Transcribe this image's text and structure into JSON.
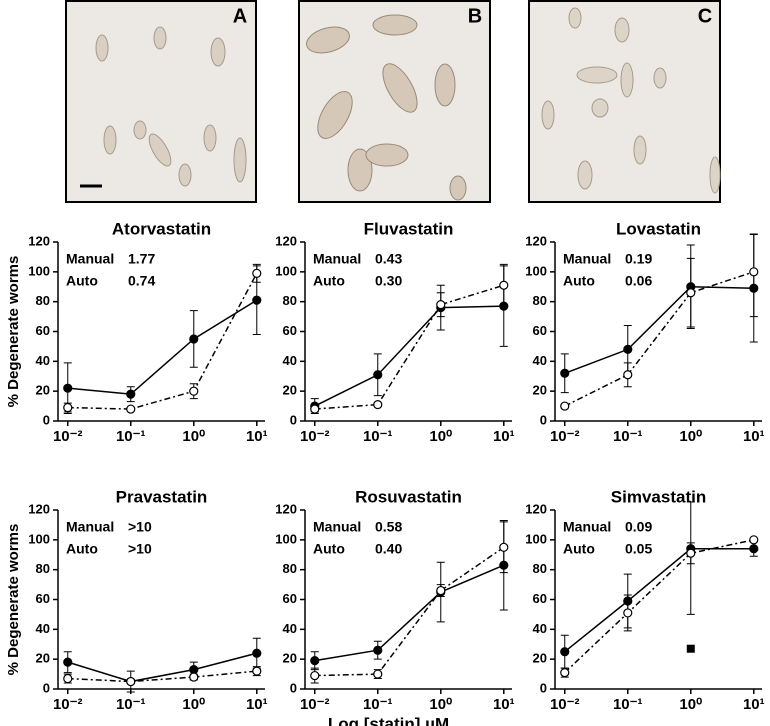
{
  "panels": [
    {
      "label": "A"
    },
    {
      "label": "B"
    },
    {
      "label": "C"
    }
  ],
  "chart_data": [
    {
      "type": "line",
      "title": "Atorvastatin",
      "ylabel": "% Degenerate worms",
      "annotations": [
        [
          "Manual",
          "1.77"
        ],
        [
          "Auto",
          "0.74"
        ]
      ],
      "x": [
        0.01,
        0.1,
        1,
        10
      ],
      "xlog": true,
      "xlim": [
        0.007,
        13.5
      ],
      "xticks": [
        {
          "value": 0.01,
          "label": "10⁻²"
        },
        {
          "value": 0.1,
          "label": "10⁻¹"
        },
        {
          "value": 1,
          "label": "10⁰"
        },
        {
          "value": 10,
          "label": "10¹"
        }
      ],
      "ylim": [
        0,
        120
      ],
      "yticks": [
        0,
        20,
        40,
        60,
        80,
        100,
        120
      ],
      "series": [
        {
          "color": "#000000",
          "marker": "filled",
          "style": "solid",
          "values": [
            22,
            18,
            55,
            81
          ],
          "errors": [
            17,
            5,
            19,
            23
          ]
        },
        {
          "color": "#000000",
          "marker": "open",
          "style": "dashed",
          "values": [
            9,
            8,
            20,
            99
          ],
          "errors": [
            3,
            1,
            5,
            6
          ]
        }
      ]
    },
    {
      "type": "line",
      "title": "Fluvastatin",
      "annotations": [
        [
          "Manual",
          "0.43"
        ],
        [
          "Auto",
          "0.30"
        ]
      ],
      "x": [
        0.01,
        0.1,
        1,
        10
      ],
      "xlog": true,
      "xlim": [
        0.007,
        13.5
      ],
      "xticks": [
        {
          "value": 0.01,
          "label": "10⁻²"
        },
        {
          "value": 0.1,
          "label": "10⁻¹"
        },
        {
          "value": 1,
          "label": "10⁰"
        },
        {
          "value": 10,
          "label": "10¹"
        }
      ],
      "ylim": [
        0,
        120
      ],
      "yticks": [
        0,
        20,
        40,
        60,
        80,
        100,
        120
      ],
      "series": [
        {
          "color": "#000000",
          "marker": "filled",
          "style": "solid",
          "values": [
            10,
            31,
            76,
            77
          ],
          "errors": [
            5,
            14,
            15,
            27
          ]
        },
        {
          "color": "#000000",
          "marker": "open",
          "style": "dashed",
          "values": [
            8,
            11,
            78,
            91
          ],
          "errors": [
            2,
            1,
            8,
            14
          ]
        }
      ]
    },
    {
      "type": "line",
      "title": "Lovastatin",
      "annotations": [
        [
          "Manual",
          "0.19"
        ],
        [
          "Auto",
          "0.06"
        ]
      ],
      "x": [
        0.01,
        0.1,
        1,
        10
      ],
      "xlog": true,
      "xlim": [
        0.007,
        13.5
      ],
      "xticks": [
        {
          "value": 0.01,
          "label": "10⁻²"
        },
        {
          "value": 0.1,
          "label": "10⁻¹"
        },
        {
          "value": 1,
          "label": "10⁰"
        },
        {
          "value": 10,
          "label": "10¹"
        }
      ],
      "ylim": [
        0,
        120
      ],
      "yticks": [
        0,
        20,
        40,
        60,
        80,
        100,
        120
      ],
      "series": [
        {
          "color": "#000000",
          "marker": "filled",
          "style": "solid",
          "values": [
            32,
            48,
            90,
            89
          ],
          "errors": [
            13,
            16,
            28,
            36
          ]
        },
        {
          "color": "#000000",
          "marker": "open",
          "style": "dashed",
          "values": [
            10,
            31,
            86,
            100
          ],
          "errors": [
            1,
            8,
            23,
            30
          ]
        }
      ]
    },
    {
      "type": "line",
      "title": "Pravastatin",
      "ylabel": "% Degenerate worms",
      "annotations": [
        [
          "Manual",
          ">10"
        ],
        [
          "Auto",
          ">10"
        ]
      ],
      "x": [
        0.01,
        0.1,
        1,
        10
      ],
      "xlog": true,
      "xlim": [
        0.007,
        13.5
      ],
      "xticks": [
        {
          "value": 0.01,
          "label": "10⁻²"
        },
        {
          "value": 0.1,
          "label": "10⁻¹"
        },
        {
          "value": 1,
          "label": "10⁰"
        },
        {
          "value": 10,
          "label": "10¹"
        }
      ],
      "ylim": [
        0,
        120
      ],
      "yticks": [
        0,
        20,
        40,
        60,
        80,
        100,
        120
      ],
      "series": [
        {
          "color": "#000000",
          "marker": "filled",
          "style": "solid",
          "values": [
            18,
            5,
            13,
            24
          ],
          "errors": [
            7,
            7,
            5,
            10
          ]
        },
        {
          "color": "#000000",
          "marker": "open",
          "style": "dashed",
          "values": [
            7,
            5,
            8,
            12
          ],
          "errors": [
            3,
            1,
            2,
            3
          ]
        }
      ]
    },
    {
      "type": "line",
      "title": "Rosuvastatin",
      "xlabel": "Log [statin] µM",
      "annotations": [
        [
          "Manual",
          "0.58"
        ],
        [
          "Auto",
          "0.40"
        ]
      ],
      "x": [
        0.01,
        0.1,
        1,
        10
      ],
      "xlog": true,
      "xlim": [
        0.007,
        13.5
      ],
      "xticks": [
        {
          "value": 0.01,
          "label": "10⁻²"
        },
        {
          "value": 0.1,
          "label": "10⁻¹"
        },
        {
          "value": 1,
          "label": "10⁰"
        },
        {
          "value": 10,
          "label": "10¹"
        }
      ],
      "ylim": [
        0,
        120
      ],
      "yticks": [
        0,
        20,
        40,
        60,
        80,
        100,
        120
      ],
      "series": [
        {
          "color": "#000000",
          "marker": "filled",
          "style": "solid",
          "values": [
            19,
            26,
            65,
            83
          ],
          "errors": [
            6,
            6,
            20,
            30
          ]
        },
        {
          "color": "#000000",
          "marker": "open",
          "style": "dashed",
          "values": [
            9,
            10,
            66,
            95
          ],
          "errors": [
            5,
            3,
            4,
            17
          ]
        }
      ]
    },
    {
      "type": "line",
      "title": "Simvastatin",
      "annotations": [
        [
          "Manual",
          "0.09"
        ],
        [
          "Auto",
          "0.05"
        ]
      ],
      "x": [
        0.01,
        0.1,
        1,
        10
      ],
      "xlog": true,
      "xlim": [
        0.007,
        13.5
      ],
      "xticks": [
        {
          "value": 0.01,
          "label": "10⁻²"
        },
        {
          "value": 0.1,
          "label": "10⁻¹"
        },
        {
          "value": 1,
          "label": "10⁰"
        },
        {
          "value": 10,
          "label": "10¹"
        }
      ],
      "ylim": [
        0,
        120
      ],
      "yticks": [
        0,
        20,
        40,
        60,
        80,
        100,
        120
      ],
      "series": [
        {
          "color": "#000000",
          "marker": "filled",
          "style": "solid",
          "values": [
            25,
            59,
            94,
            94
          ],
          "errors": [
            11,
            18,
            44,
            5
          ]
        },
        {
          "color": "#000000",
          "marker": "open",
          "style": "dashed",
          "values": [
            11,
            51,
            91,
            100
          ],
          "errors": [
            3,
            12,
            7,
            1
          ]
        }
      ],
      "points": [
        {
          "x": 1,
          "y": 27
        }
      ]
    }
  ]
}
